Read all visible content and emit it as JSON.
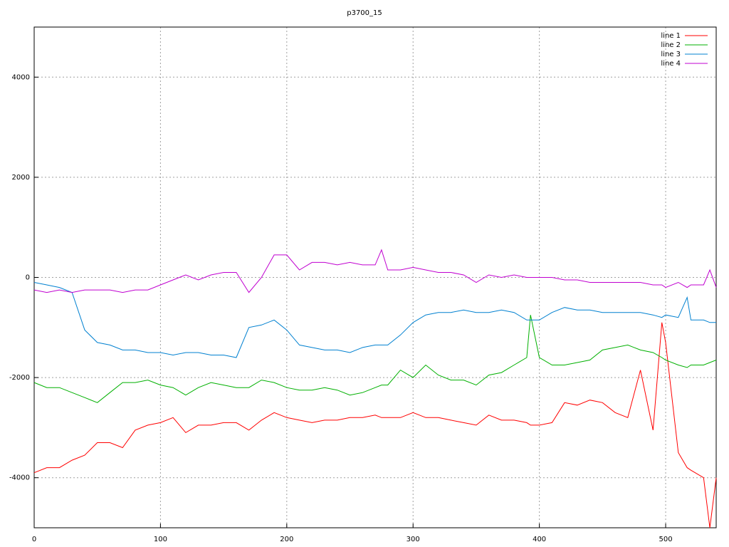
{
  "chart_data": {
    "type": "line",
    "title": "p3700_15",
    "x": [
      0,
      10,
      20,
      30,
      40,
      50,
      60,
      70,
      80,
      90,
      100,
      110,
      120,
      130,
      140,
      150,
      160,
      170,
      180,
      190,
      200,
      210,
      220,
      230,
      240,
      250,
      260,
      270,
      275,
      280,
      290,
      300,
      310,
      320,
      330,
      340,
      350,
      360,
      370,
      380,
      390,
      393,
      400,
      410,
      420,
      430,
      440,
      450,
      460,
      470,
      480,
      490,
      497,
      500,
      510,
      517,
      520,
      530,
      535,
      540
    ],
    "series": [
      {
        "name": "line 1",
        "color": "#ff0000",
        "values": [
          -3900,
          -3800,
          -3800,
          -3650,
          -3550,
          -3300,
          -3300,
          -3400,
          -3050,
          -2950,
          -2900,
          -2800,
          -3100,
          -2950,
          -2950,
          -2900,
          -2900,
          -3050,
          -2850,
          -2700,
          -2800,
          -2850,
          -2900,
          -2850,
          -2850,
          -2800,
          -2800,
          -2750,
          -2800,
          -2800,
          -2800,
          -2700,
          -2800,
          -2800,
          -2850,
          -2900,
          -2950,
          -2750,
          -2850,
          -2850,
          -2900,
          -2950,
          -2950,
          -2900,
          -2500,
          -2550,
          -2450,
          -2500,
          -2700,
          -2800,
          -1850,
          -3050,
          -900,
          -1300,
          -3500,
          -3800,
          -3850,
          -4000,
          -5000,
          -4000
        ]
      },
      {
        "name": "line 2",
        "color": "#00b000",
        "values": [
          -2100,
          -2200,
          -2200,
          -2300,
          -2400,
          -2500,
          -2300,
          -2100,
          -2100,
          -2050,
          -2150,
          -2200,
          -2350,
          -2200,
          -2100,
          -2150,
          -2200,
          -2200,
          -2050,
          -2100,
          -2200,
          -2250,
          -2250,
          -2200,
          -2250,
          -2350,
          -2300,
          -2200,
          -2150,
          -2150,
          -1850,
          -2000,
          -1750,
          -1950,
          -2050,
          -2050,
          -2150,
          -1950,
          -1900,
          -1750,
          -1600,
          -750,
          -1600,
          -1750,
          -1750,
          -1700,
          -1650,
          -1450,
          -1400,
          -1350,
          -1450,
          -1500,
          -1600,
          -1650,
          -1750,
          -1800,
          -1750,
          -1750,
          -1700,
          -1650
        ]
      },
      {
        "name": "line 3",
        "color": "#0080d0",
        "values": [
          -100,
          -150,
          -200,
          -300,
          -1050,
          -1300,
          -1350,
          -1450,
          -1450,
          -1500,
          -1500,
          -1550,
          -1500,
          -1500,
          -1550,
          -1550,
          -1600,
          -1000,
          -950,
          -850,
          -1050,
          -1350,
          -1400,
          -1450,
          -1450,
          -1500,
          -1400,
          -1350,
          -1350,
          -1350,
          -1150,
          -900,
          -750,
          -700,
          -700,
          -650,
          -700,
          -700,
          -650,
          -700,
          -850,
          -850,
          -850,
          -700,
          -600,
          -650,
          -650,
          -700,
          -700,
          -700,
          -700,
          -750,
          -800,
          -750,
          -800,
          -400,
          -850,
          -850,
          -900,
          -900
        ]
      },
      {
        "name": "line 4",
        "color": "#c000d0",
        "values": [
          -250,
          -300,
          -250,
          -300,
          -250,
          -250,
          -250,
          -300,
          -250,
          -250,
          -150,
          -50,
          50,
          -50,
          50,
          100,
          100,
          -300,
          0,
          450,
          450,
          150,
          300,
          300,
          250,
          300,
          250,
          250,
          550,
          150,
          150,
          200,
          150,
          100,
          100,
          50,
          -100,
          50,
          0,
          50,
          0,
          0,
          0,
          0,
          -50,
          -50,
          -100,
          -100,
          -100,
          -100,
          -100,
          -150,
          -150,
          -200,
          -100,
          -200,
          -150,
          -150,
          150,
          -200
        ]
      }
    ],
    "xlim": [
      0,
      540
    ],
    "xticks": [
      0,
      100,
      200,
      300,
      400,
      500
    ],
    "ylim": [
      -5000,
      5000
    ],
    "yticks": [
      -4000,
      -2000,
      0,
      2000,
      4000
    ],
    "grid": true,
    "legend": "top-right"
  }
}
